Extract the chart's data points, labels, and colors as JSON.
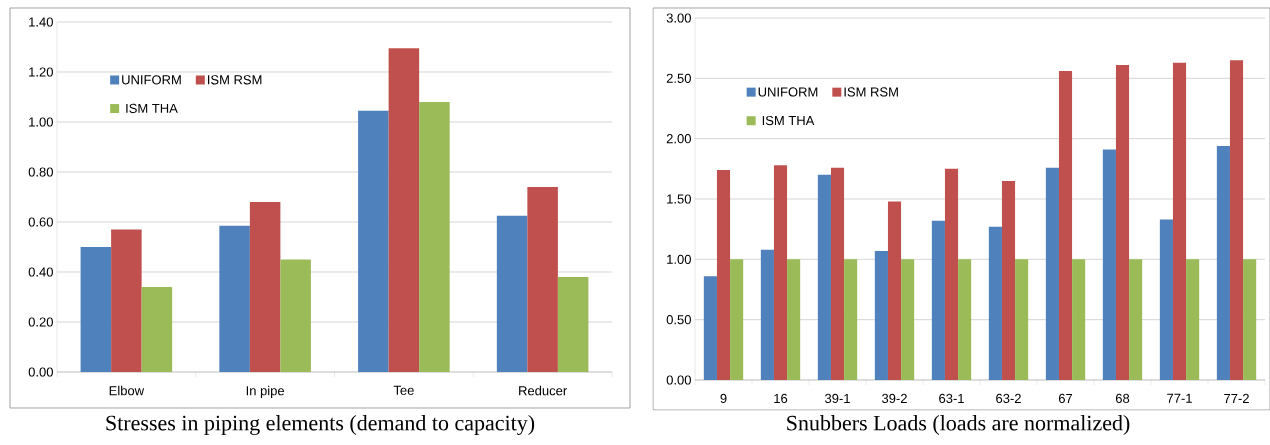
{
  "chart_data": [
    {
      "type": "bar",
      "title": "Stresses in piping elements (demand to capacity)",
      "categories": [
        "Elbow",
        "In pipe",
        "Tee",
        "Reducer"
      ],
      "series": [
        {
          "name": "UNIFORM",
          "color": "#4f81bd",
          "values": [
            0.5,
            0.585,
            1.045,
            0.625
          ]
        },
        {
          "name": "ISM RSM",
          "color": "#c0504d",
          "values": [
            0.57,
            0.68,
            1.295,
            0.74
          ]
        },
        {
          "name": "ISM THA",
          "color": "#9bbb59",
          "values": [
            0.34,
            0.45,
            1.08,
            0.38
          ]
        }
      ],
      "ylim": [
        0,
        1.4
      ],
      "yticks": [
        {
          "value": 0,
          "label": "0.00"
        },
        {
          "value": 0.2,
          "label": "0.20"
        },
        {
          "value": 0.4,
          "label": "0.40"
        },
        {
          "value": 0.6,
          "label": "0.60"
        },
        {
          "value": 0.8,
          "label": "0.80"
        },
        {
          "value": 1.0,
          "label": "1.00"
        },
        {
          "value": 1.2,
          "label": "1.20"
        },
        {
          "value": 1.4,
          "label": "1.40"
        }
      ],
      "grid": "y",
      "legend": "top left"
    },
    {
      "type": "bar",
      "title": "Snubbers Loads (loads are normalized)",
      "categories": [
        "9",
        "16",
        "39-1",
        "39-2",
        "63-1",
        "63-2",
        "67",
        "68",
        "77-1",
        "77-2"
      ],
      "series": [
        {
          "name": "UNIFORM",
          "color": "#4f81bd",
          "values": [
            0.86,
            1.08,
            1.7,
            1.07,
            1.32,
            1.27,
            1.76,
            1.91,
            1.33,
            1.94
          ]
        },
        {
          "name": "ISM RSM",
          "color": "#c0504d",
          "values": [
            1.74,
            1.78,
            1.76,
            1.48,
            1.75,
            1.65,
            2.56,
            2.61,
            2.63,
            2.65
          ]
        },
        {
          "name": "ISM THA",
          "color": "#9bbb59",
          "values": [
            1.0,
            1.0,
            1.0,
            1.0,
            1.0,
            1.0,
            1.0,
            1.0,
            1.0,
            1.0
          ]
        }
      ],
      "ylim": [
        0,
        3.0
      ],
      "yticks": [
        {
          "value": 0,
          "label": "0.00"
        },
        {
          "value": 0.5,
          "label": "0.50"
        },
        {
          "value": 1.0,
          "label": "1.00"
        },
        {
          "value": 1.5,
          "label": "1.50"
        },
        {
          "value": 2.0,
          "label": "2.00"
        },
        {
          "value": 2.5,
          "label": "2.50"
        },
        {
          "value": 3.0,
          "label": "3.00"
        }
      ],
      "grid": "y",
      "legend": "top left"
    }
  ]
}
